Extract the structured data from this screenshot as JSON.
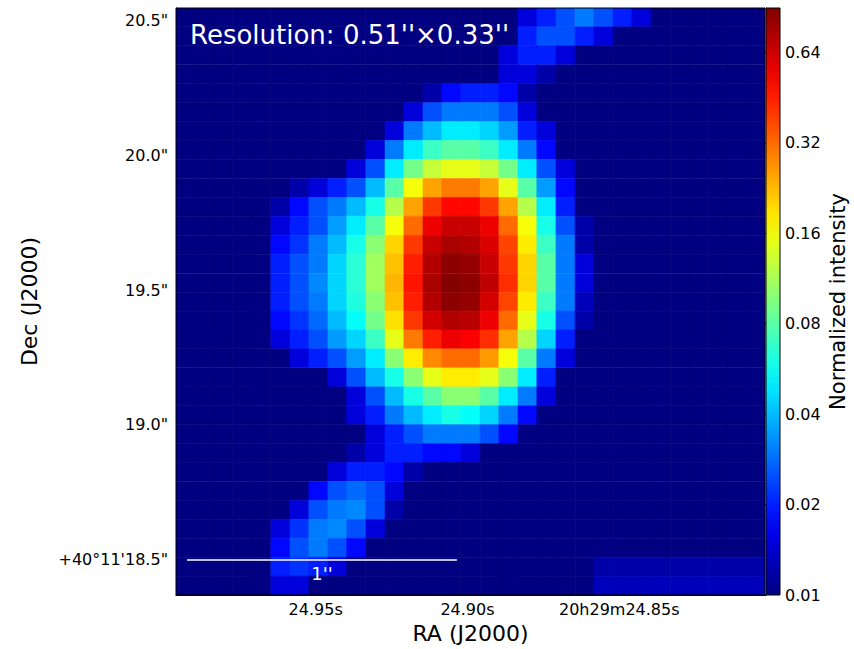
{
  "chart_data": {
    "type": "heatmap",
    "annotations": [
      "Resolution: 0.51''×0.33''"
    ],
    "scale_bar": {
      "label": "1''",
      "length": 1
    },
    "x_label": "RA (J2000)",
    "y_label": "Dec (J2000)",
    "xlim": [
      24.996,
      24.802
    ],
    "xticks": [
      {
        "value": 24.95,
        "label": "24.95s"
      },
      {
        "value": 24.9,
        "label": "24.90s"
      },
      {
        "value": 24.85,
        "label": "20h29m24.85s"
      }
    ],
    "ylim": [
      18.37,
      20.545
    ],
    "yticks": [
      {
        "value": 18.5,
        "label": "+40°11'18.5\""
      },
      {
        "value": 19.0,
        "label": "19.0\""
      },
      {
        "value": 19.5,
        "label": "19.5\""
      },
      {
        "value": 20.0,
        "label": "20.0\""
      },
      {
        "value": 20.5,
        "label": "20.5\""
      }
    ],
    "x": [
      24.9929,
      24.9866,
      24.9804,
      24.9741,
      24.9679,
      24.9616,
      24.9553,
      24.9491,
      24.9428,
      24.9366,
      24.9303,
      24.924,
      24.9178,
      24.9115,
      24.9053,
      24.899,
      24.8927,
      24.8865,
      24.8802,
      24.874,
      24.8677,
      24.8614,
      24.8552,
      24.8489,
      24.8427,
      24.8364,
      24.8301,
      24.8239,
      24.8176,
      24.8114,
      24.8051
    ],
    "y": [
      20.51,
      20.44,
      20.37,
      20.299,
      20.229,
      20.159,
      20.089,
      20.019,
      19.949,
      19.878,
      19.808,
      19.738,
      19.668,
      19.598,
      19.527,
      19.457,
      19.387,
      19.317,
      19.247,
      19.176,
      19.106,
      19.036,
      18.966,
      18.896,
      18.826,
      18.755,
      18.685,
      18.615,
      18.545,
      18.475,
      18.405
    ],
    "cells": [
      [
        0.01,
        0.01,
        0.01,
        0.01,
        0.01,
        0.01,
        0.01,
        0.01,
        0.01,
        0.01,
        0.01,
        0.01,
        0.01,
        0.01,
        0.01,
        0.01,
        0.01,
        0.01,
        0.015,
        0.02,
        0.025,
        0.03,
        0.025,
        0.02,
        0.015,
        0.01,
        0.01,
        0.01,
        0.01,
        0.01,
        0.01
      ],
      [
        0.01,
        0.01,
        0.01,
        0.01,
        0.01,
        0.01,
        0.01,
        0.01,
        0.01,
        0.01,
        0.01,
        0.01,
        0.01,
        0.01,
        0.01,
        0.01,
        0.01,
        0.01,
        0.02,
        0.025,
        0.025,
        0.02,
        0.015,
        0.01,
        0.01,
        0.01,
        0.01,
        0.01,
        0.01,
        0.01,
        0.01
      ],
      [
        0.01,
        0.01,
        0.01,
        0.01,
        0.01,
        0.01,
        0.01,
        0.01,
        0.01,
        0.01,
        0.01,
        0.01,
        0.01,
        0.01,
        0.01,
        0.01,
        0.01,
        0.015,
        0.02,
        0.02,
        0.015,
        0.01,
        0.01,
        0.01,
        0.01,
        0.01,
        0.01,
        0.01,
        0.01,
        0.01,
        0.01
      ],
      [
        0.01,
        0.01,
        0.01,
        0.01,
        0.01,
        0.01,
        0.01,
        0.01,
        0.01,
        0.01,
        0.01,
        0.01,
        0.01,
        0.01,
        0.01,
        0.01,
        0.01,
        0.015,
        0.015,
        0.012,
        0.01,
        0.01,
        0.01,
        0.01,
        0.01,
        0.01,
        0.01,
        0.01,
        0.01,
        0.01,
        0.01
      ],
      [
        0.01,
        0.01,
        0.01,
        0.01,
        0.01,
        0.01,
        0.01,
        0.01,
        0.01,
        0.01,
        0.01,
        0.01,
        0.01,
        0.012,
        0.018,
        0.02,
        0.02,
        0.018,
        0.012,
        0.01,
        0.01,
        0.01,
        0.01,
        0.01,
        0.01,
        0.01,
        0.01,
        0.01,
        0.01,
        0.01,
        0.01
      ],
      [
        0.01,
        0.01,
        0.01,
        0.01,
        0.01,
        0.01,
        0.01,
        0.01,
        0.01,
        0.01,
        0.01,
        0.01,
        0.015,
        0.025,
        0.03,
        0.03,
        0.03,
        0.025,
        0.015,
        0.01,
        0.01,
        0.01,
        0.01,
        0.01,
        0.01,
        0.01,
        0.01,
        0.01,
        0.01,
        0.01,
        0.01
      ],
      [
        0.01,
        0.01,
        0.01,
        0.01,
        0.01,
        0.01,
        0.01,
        0.01,
        0.01,
        0.01,
        0.01,
        0.015,
        0.03,
        0.04,
        0.05,
        0.05,
        0.045,
        0.035,
        0.02,
        0.015,
        0.01,
        0.01,
        0.01,
        0.01,
        0.01,
        0.01,
        0.01,
        0.01,
        0.01,
        0.01,
        0.01
      ],
      [
        0.01,
        0.01,
        0.01,
        0.01,
        0.01,
        0.01,
        0.01,
        0.01,
        0.01,
        0.01,
        0.015,
        0.03,
        0.05,
        0.07,
        0.08,
        0.08,
        0.07,
        0.05,
        0.03,
        0.018,
        0.01,
        0.01,
        0.01,
        0.01,
        0.01,
        0.01,
        0.01,
        0.01,
        0.01,
        0.01,
        0.01
      ],
      [
        0.01,
        0.01,
        0.01,
        0.01,
        0.01,
        0.01,
        0.01,
        0.01,
        0.01,
        0.015,
        0.025,
        0.05,
        0.09,
        0.13,
        0.15,
        0.15,
        0.13,
        0.09,
        0.05,
        0.025,
        0.015,
        0.01,
        0.01,
        0.01,
        0.01,
        0.01,
        0.01,
        0.01,
        0.01,
        0.01,
        0.01
      ],
      [
        0.01,
        0.01,
        0.01,
        0.01,
        0.01,
        0.01,
        0.012,
        0.015,
        0.02,
        0.025,
        0.04,
        0.08,
        0.16,
        0.25,
        0.3,
        0.3,
        0.25,
        0.15,
        0.08,
        0.035,
        0.018,
        0.01,
        0.01,
        0.01,
        0.01,
        0.01,
        0.01,
        0.01,
        0.01,
        0.01,
        0.01
      ],
      [
        0.01,
        0.01,
        0.01,
        0.01,
        0.01,
        0.012,
        0.018,
        0.025,
        0.03,
        0.04,
        0.06,
        0.12,
        0.25,
        0.4,
        0.5,
        0.5,
        0.4,
        0.25,
        0.12,
        0.05,
        0.02,
        0.01,
        0.01,
        0.01,
        0.01,
        0.01,
        0.01,
        0.01,
        0.01,
        0.01,
        0.01
      ],
      [
        0.01,
        0.01,
        0.01,
        0.01,
        0.01,
        0.015,
        0.02,
        0.025,
        0.035,
        0.05,
        0.08,
        0.16,
        0.32,
        0.55,
        0.65,
        0.65,
        0.55,
        0.32,
        0.16,
        0.06,
        0.025,
        0.012,
        0.01,
        0.01,
        0.01,
        0.01,
        0.01,
        0.01,
        0.01,
        0.01,
        0.01
      ],
      [
        0.01,
        0.01,
        0.01,
        0.01,
        0.01,
        0.018,
        0.022,
        0.03,
        0.04,
        0.06,
        0.1,
        0.2,
        0.4,
        0.65,
        0.75,
        0.72,
        0.6,
        0.38,
        0.18,
        0.07,
        0.03,
        0.012,
        0.01,
        0.01,
        0.01,
        0.01,
        0.01,
        0.01,
        0.01,
        0.01,
        0.01
      ],
      [
        0.01,
        0.01,
        0.01,
        0.01,
        0.01,
        0.02,
        0.025,
        0.03,
        0.045,
        0.065,
        0.11,
        0.22,
        0.45,
        0.72,
        0.85,
        0.82,
        0.65,
        0.4,
        0.2,
        0.08,
        0.03,
        0.015,
        0.01,
        0.01,
        0.01,
        0.01,
        0.01,
        0.01,
        0.01,
        0.01,
        0.01
      ],
      [
        0.01,
        0.01,
        0.01,
        0.01,
        0.01,
        0.02,
        0.025,
        0.032,
        0.045,
        0.065,
        0.11,
        0.23,
        0.47,
        0.75,
        0.88,
        0.85,
        0.68,
        0.42,
        0.2,
        0.08,
        0.03,
        0.015,
        0.01,
        0.01,
        0.01,
        0.01,
        0.01,
        0.01,
        0.01,
        0.01,
        0.01
      ],
      [
        0.01,
        0.01,
        0.01,
        0.01,
        0.01,
        0.02,
        0.025,
        0.03,
        0.045,
        0.062,
        0.1,
        0.22,
        0.45,
        0.72,
        0.85,
        0.82,
        0.62,
        0.38,
        0.18,
        0.07,
        0.03,
        0.013,
        0.01,
        0.01,
        0.01,
        0.01,
        0.01,
        0.01,
        0.01,
        0.01,
        0.01
      ],
      [
        0.01,
        0.01,
        0.01,
        0.01,
        0.01,
        0.018,
        0.022,
        0.028,
        0.04,
        0.055,
        0.09,
        0.19,
        0.4,
        0.62,
        0.72,
        0.7,
        0.55,
        0.32,
        0.15,
        0.06,
        0.025,
        0.012,
        0.01,
        0.01,
        0.01,
        0.01,
        0.01,
        0.01,
        0.01,
        0.01,
        0.01
      ],
      [
        0.01,
        0.01,
        0.01,
        0.01,
        0.01,
        0.015,
        0.02,
        0.025,
        0.035,
        0.045,
        0.07,
        0.15,
        0.3,
        0.45,
        0.55,
        0.52,
        0.42,
        0.25,
        0.12,
        0.045,
        0.02,
        0.01,
        0.01,
        0.01,
        0.01,
        0.01,
        0.01,
        0.01,
        0.01,
        0.01,
        0.01
      ],
      [
        0.01,
        0.01,
        0.01,
        0.01,
        0.01,
        0.01,
        0.015,
        0.02,
        0.025,
        0.035,
        0.05,
        0.1,
        0.18,
        0.28,
        0.32,
        0.32,
        0.26,
        0.16,
        0.08,
        0.03,
        0.015,
        0.01,
        0.01,
        0.01,
        0.01,
        0.01,
        0.01,
        0.01,
        0.01,
        0.01,
        0.01
      ],
      [
        0.01,
        0.01,
        0.01,
        0.01,
        0.01,
        0.01,
        0.01,
        0.01,
        0.015,
        0.025,
        0.04,
        0.06,
        0.1,
        0.15,
        0.18,
        0.18,
        0.15,
        0.1,
        0.05,
        0.02,
        0.01,
        0.01,
        0.01,
        0.01,
        0.01,
        0.01,
        0.01,
        0.01,
        0.01,
        0.01,
        0.01
      ],
      [
        0.01,
        0.01,
        0.01,
        0.01,
        0.01,
        0.01,
        0.01,
        0.01,
        0.01,
        0.015,
        0.025,
        0.04,
        0.06,
        0.08,
        0.1,
        0.1,
        0.08,
        0.05,
        0.03,
        0.015,
        0.01,
        0.01,
        0.01,
        0.01,
        0.01,
        0.01,
        0.01,
        0.01,
        0.01,
        0.01,
        0.01
      ],
      [
        0.01,
        0.01,
        0.01,
        0.01,
        0.01,
        0.01,
        0.01,
        0.01,
        0.01,
        0.015,
        0.02,
        0.03,
        0.04,
        0.05,
        0.06,
        0.055,
        0.045,
        0.03,
        0.018,
        0.01,
        0.01,
        0.01,
        0.01,
        0.01,
        0.01,
        0.01,
        0.01,
        0.01,
        0.01,
        0.01,
        0.01
      ],
      [
        0.01,
        0.01,
        0.01,
        0.01,
        0.01,
        0.01,
        0.01,
        0.01,
        0.01,
        0.01,
        0.015,
        0.02,
        0.025,
        0.03,
        0.03,
        0.03,
        0.025,
        0.018,
        0.01,
        0.01,
        0.01,
        0.01,
        0.01,
        0.01,
        0.01,
        0.01,
        0.01,
        0.01,
        0.01,
        0.01,
        0.01
      ],
      [
        0.01,
        0.01,
        0.01,
        0.01,
        0.01,
        0.01,
        0.01,
        0.01,
        0.01,
        0.012,
        0.015,
        0.02,
        0.02,
        0.018,
        0.018,
        0.015,
        0.01,
        0.01,
        0.01,
        0.01,
        0.01,
        0.01,
        0.01,
        0.01,
        0.01,
        0.01,
        0.01,
        0.01,
        0.01,
        0.01,
        0.01
      ],
      [
        0.01,
        0.01,
        0.01,
        0.01,
        0.01,
        0.01,
        0.01,
        0.01,
        0.015,
        0.02,
        0.02,
        0.018,
        0.012,
        0.01,
        0.01,
        0.01,
        0.01,
        0.01,
        0.01,
        0.01,
        0.01,
        0.01,
        0.01,
        0.01,
        0.01,
        0.01,
        0.01,
        0.01,
        0.01,
        0.01,
        0.01
      ],
      [
        0.01,
        0.01,
        0.01,
        0.01,
        0.01,
        0.01,
        0.01,
        0.018,
        0.025,
        0.028,
        0.025,
        0.015,
        0.01,
        0.01,
        0.01,
        0.01,
        0.01,
        0.01,
        0.01,
        0.01,
        0.01,
        0.01,
        0.01,
        0.01,
        0.01,
        0.01,
        0.01,
        0.01,
        0.01,
        0.01,
        0.01
      ],
      [
        0.01,
        0.01,
        0.01,
        0.01,
        0.01,
        0.01,
        0.015,
        0.025,
        0.03,
        0.032,
        0.025,
        0.012,
        0.01,
        0.01,
        0.01,
        0.01,
        0.01,
        0.01,
        0.01,
        0.01,
        0.01,
        0.01,
        0.01,
        0.01,
        0.01,
        0.01,
        0.01,
        0.01,
        0.01,
        0.01,
        0.01
      ],
      [
        0.01,
        0.01,
        0.01,
        0.01,
        0.01,
        0.015,
        0.022,
        0.03,
        0.032,
        0.025,
        0.015,
        0.01,
        0.01,
        0.01,
        0.01,
        0.01,
        0.01,
        0.01,
        0.01,
        0.01,
        0.01,
        0.01,
        0.01,
        0.01,
        0.01,
        0.01,
        0.01,
        0.01,
        0.01,
        0.01,
        0.01
      ],
      [
        0.01,
        0.01,
        0.01,
        0.01,
        0.01,
        0.018,
        0.025,
        0.03,
        0.025,
        0.018,
        0.01,
        0.01,
        0.01,
        0.01,
        0.01,
        0.01,
        0.01,
        0.01,
        0.01,
        0.01,
        0.01,
        0.01,
        0.01,
        0.01,
        0.01,
        0.01,
        0.01,
        0.01,
        0.01,
        0.01,
        0.01
      ],
      [
        0.01,
        0.01,
        0.01,
        0.01,
        0.01,
        0.02,
        0.022,
        0.02,
        0.015,
        0.01,
        0.01,
        0.01,
        0.01,
        0.01,
        0.01,
        0.01,
        0.01,
        0.01,
        0.01,
        0.01,
        0.01,
        0.01,
        0.012,
        0.012,
        0.012,
        0.012,
        0.012,
        0.012,
        0.012,
        0.012,
        0.012
      ],
      [
        0.01,
        0.01,
        0.01,
        0.01,
        0.01,
        0.015,
        0.015,
        0.01,
        0.01,
        0.01,
        0.01,
        0.01,
        0.01,
        0.01,
        0.01,
        0.01,
        0.01,
        0.01,
        0.01,
        0.01,
        0.01,
        0.01,
        0.013,
        0.013,
        0.013,
        0.013,
        0.013,
        0.013,
        0.013,
        0.013,
        0.013
      ]
    ],
    "colorbar": {
      "label": "Normalized intensity",
      "log": true,
      "range": [
        0.01,
        0.9
      ],
      "ticks": [
        0.01,
        0.02,
        0.04,
        0.08,
        0.16,
        0.32,
        0.64
      ]
    }
  }
}
